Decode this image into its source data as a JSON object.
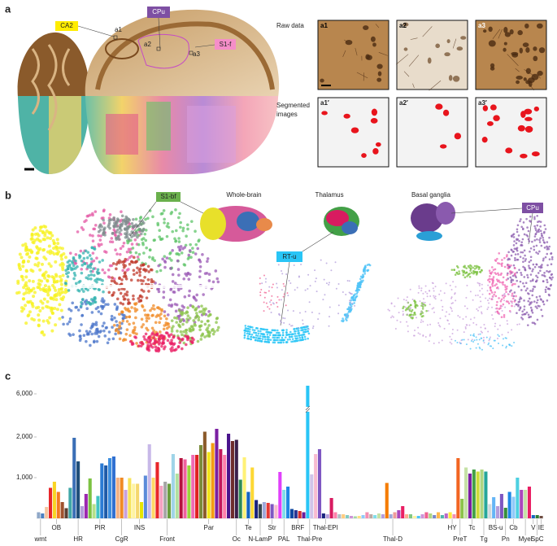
{
  "panel_a": {
    "label": "a",
    "brain_labels": [
      "CA2",
      "CPu",
      "S1-f"
    ],
    "site_labels": [
      "a1",
      "a2",
      "a3"
    ],
    "raw_label": "Raw data",
    "segmented_label": "Segmented images",
    "raw_images": [
      "a1",
      "a2",
      "a3"
    ],
    "segmented_images": [
      "a1′",
      "a2′",
      "a3′"
    ]
  },
  "panel_b": {
    "label": "b",
    "titles": [
      "Whole-brain",
      "Thalamus",
      "Basal ganglia"
    ],
    "region_labels": [
      "S1-bf",
      "RT-u",
      "CPu"
    ]
  },
  "panel_c": {
    "label": "c"
  },
  "chart_data": {
    "type": "bar",
    "ylim": [
      0,
      6500
    ],
    "ybreak": [
      2600,
      5700
    ],
    "yticks": [
      {
        "value": 1000,
        "label": "1,000"
      },
      {
        "value": 2000,
        "label": "2,000"
      },
      {
        "value": 6000,
        "label": "6,000"
      }
    ],
    "groups": [
      {
        "name": "wmt",
        "values": [
          150,
          120
        ],
        "colors": [
          "#8fa8c8",
          "#4a7fc1"
        ]
      },
      {
        "name": "OB",
        "values": [
          280,
          750,
          900,
          650,
          400,
          250
        ],
        "colors": [
          "#f5c6a0",
          "#e8262a",
          "#f9d423",
          "#f47b20",
          "#a0522d",
          "#5c4033"
        ]
      },
      {
        "name": "HR",
        "values": [
          750,
          1980,
          1400,
          300,
          600
        ],
        "colors": [
          "#3fa7a7",
          "#3b6fb6",
          "#1f4e79",
          "#b39ddb",
          "#9c27b0"
        ]
      },
      {
        "name": "PIR",
        "values": [
          980,
          350,
          550,
          1350,
          1300,
          1480
        ],
        "colors": [
          "#7cc242",
          "#b5e08a",
          "#40c4c4",
          "#2b7bd4",
          "#1e5aa8",
          "#3d8fe0"
        ]
      },
      {
        "name": "CgR",
        "values": [
          1520,
          1000,
          1000,
          700,
          990
        ],
        "colors": [
          "#2f6fd1",
          "#f4b183",
          "#f08a24",
          "#c9a0dc",
          "#f7e45a"
        ]
      },
      {
        "name": "INS",
        "values": [
          850,
          850,
          400,
          1050
        ],
        "colors": [
          "#fff3a0",
          "#f5d76e",
          "#e6e600",
          "#5b8bd9"
        ]
      },
      {
        "name": "Front",
        "values": [
          1820,
          1000,
          1380,
          800,
          900,
          850,
          1580,
          1100,
          1480,
          1450
        ],
        "colors": [
          "#c8b8e8",
          "#ffd966",
          "#e8262a",
          "#f4a0c0",
          "#a5a5a5",
          "#6a9e3f",
          "#9fd4e8",
          "#b0e0a0",
          "#b5103c",
          "#f0609e"
        ]
      },
      {
        "name": "Par",
        "values": [
          1300,
          1560,
          1560,
          1800,
          2130,
          1630,
          1850,
          2200,
          1700,
          1560,
          2080
        ],
        "colors": [
          "#9bd43c",
          "#f06ab4",
          "#e02020",
          "#7a8c3a",
          "#8b5a2b",
          "#f2e318",
          "#f39c12",
          "#7b1fa2",
          "#c2185b",
          "#ff80ab",
          "#4a148c"
        ]
      },
      {
        "name": "Oc",
        "values": [
          1900,
          1930,
          950
        ],
        "colors": [
          "#6d2c2c",
          "#3a1f4a",
          "#2e8b57"
        ]
      },
      {
        "name": "Te",
        "values": [
          1500,
          650,
          1250
        ],
        "colors": [
          "#fff176",
          "#1565c0",
          "#fdd835"
        ]
      },
      {
        "name": "N-LamP",
        "values": [
          450,
          350,
          400
        ],
        "colors": [
          "#1a237e",
          "#37474f",
          "#9fa8da"
        ]
      },
      {
        "name": "Str",
        "values": [
          380,
          350,
          330
        ],
        "colors": [
          "#e53935",
          "#7e57c2",
          "#f8bbd0"
        ]
      },
      {
        "name": "PAL",
        "values": [
          1140,
          700,
          780
        ],
        "colors": [
          "#e040fb",
          "#80deea",
          "#1e88e5"
        ]
      },
      {
        "name": "BRF",
        "values": [
          230,
          200,
          180,
          150
        ],
        "colors": [
          "#0d47a1",
          "#283593",
          "#d32f2f",
          "#6a1b9a"
        ]
      },
      {
        "name": "Thal-Pre",
        "values": [
          6200,
          1080
        ],
        "colors": [
          "#29c5f6",
          "#d1c4e9"
        ]
      },
      {
        "name": "Thal-EPI",
        "values": [
          1580,
          1700,
          120,
          100,
          500,
          150
        ],
        "colors": [
          "#f8bbd0",
          "#7e57c2",
          "#1a237e",
          "#b39ddb",
          "#d81b60",
          "#ff80ab"
        ]
      },
      {
        "name": "Thal-D",
        "values": [
          100,
          100,
          80,
          60,
          50,
          60,
          80,
          150,
          100,
          80,
          120,
          100,
          870,
          100,
          150,
          200,
          300,
          100,
          100,
          60,
          60,
          100,
          150,
          120,
          80,
          150,
          80,
          120
        ],
        "colors": [
          "#b0bec5",
          "#ffcc80",
          "#80cbc4",
          "#ce93d8",
          "#a5d6a7",
          "#ffe082",
          "#90caf9",
          "#f48fb1",
          "#bcaaa4",
          "#80deea",
          "#c5e1a5",
          "#b39ddb",
          "#f57c00",
          "#9fa8da",
          "#ef9a9a",
          "#ab47bc",
          "#e91e63",
          "#ffab91",
          "#81c784",
          "#fff59d",
          "#4fc3f7",
          "#ce93d8",
          "#f06292",
          "#aed581",
          "#7986cb",
          "#ffb74d",
          "#4db6ac",
          "#ba68c8"
        ]
      },
      {
        "name": "HY",
        "values": [
          150,
          100
        ],
        "colors": [
          "#ffeb3b",
          "#f48fb1"
        ]
      },
      {
        "name": "PreT",
        "values": [
          1480,
          480
        ],
        "colors": [
          "#f26522",
          "#8bc34a"
        ]
      },
      {
        "name": "Tc",
        "values": [
          1250,
          1100,
          1200,
          1150
        ],
        "colors": [
          "#c5e1a5",
          "#7b1fa2",
          "#43a047",
          "#cddc39"
        ]
      },
      {
        "name": "Tg",
        "values": [
          1200,
          1150
        ],
        "colors": [
          "#aed581",
          "#26a69a"
        ]
      },
      {
        "name": "BS-u",
        "values": [
          350,
          520,
          300,
          600
        ],
        "colors": [
          "#cfd8dc",
          "#64b5f6",
          "#b39ddb",
          "#7e57c2"
        ]
      },
      {
        "name": "Pn",
        "values": [
          260
        ],
        "colors": [
          "#388e3c"
        ]
      },
      {
        "name": "Cb",
        "values": [
          650,
          530,
          1000
        ],
        "colors": [
          "#1e88e5",
          "#90caf9",
          "#4dd0e1"
        ]
      },
      {
        "name": "Myel",
        "values": [
          700,
          700,
          780
        ],
        "colors": [
          "#ab47bc",
          "#c5e1a5",
          "#e91e63"
        ]
      },
      {
        "name": "V",
        "values": [
          80
        ],
        "colors": [
          "#1565c0"
        ]
      },
      {
        "name": "SpC",
        "values": [
          80
        ],
        "colors": [
          "#2e7d32"
        ]
      },
      {
        "name": "IE",
        "values": [
          60
        ],
        "colors": [
          "#6d4c41"
        ]
      }
    ]
  }
}
